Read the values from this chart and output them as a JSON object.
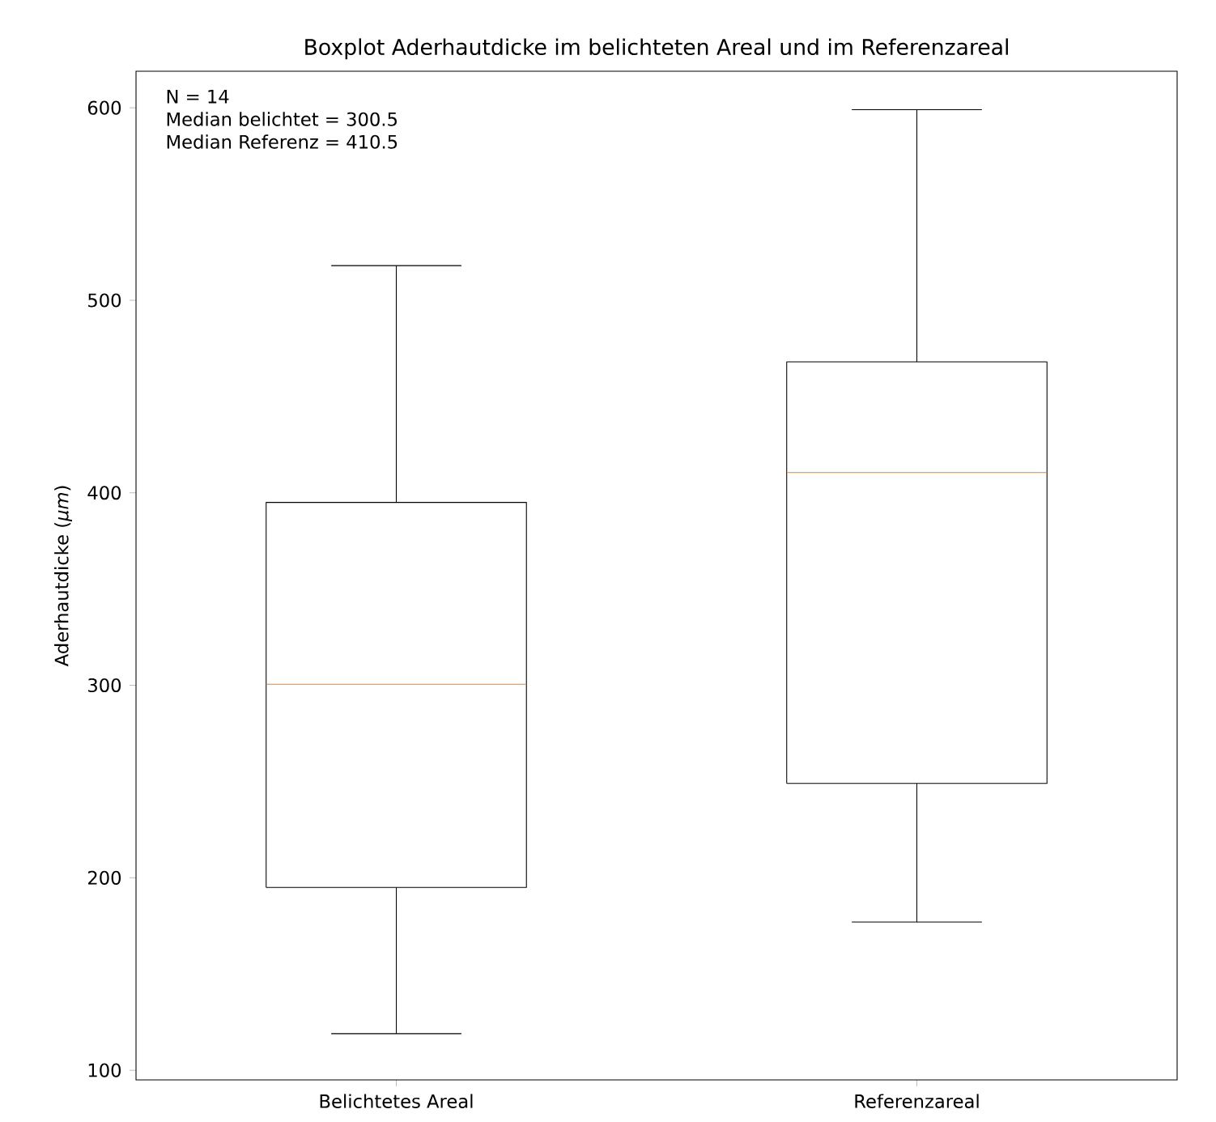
{
  "chart_data": {
    "type": "box",
    "title": "Boxplot Aderhautdicke im belichteten Areal und im Referenzareal",
    "ylabel": "Aderhautdicke (*μm*)",
    "categories": [
      "Belichtetes Areal",
      "Referenzareal"
    ],
    "boxes": [
      {
        "low": 119,
        "q1": 195,
        "median": 300.5,
        "q3": 395,
        "high": 518
      },
      {
        "low": 177,
        "q1": 249,
        "median": 410.5,
        "q3": 468,
        "high": 599
      }
    ],
    "ylim": [
      95,
      619
    ],
    "yticks": [
      100,
      200,
      300,
      400,
      500,
      600
    ],
    "annotations": [
      "N = 14",
      "Median belichtet = 300.5",
      "Median Referenz = 410.5"
    ]
  }
}
